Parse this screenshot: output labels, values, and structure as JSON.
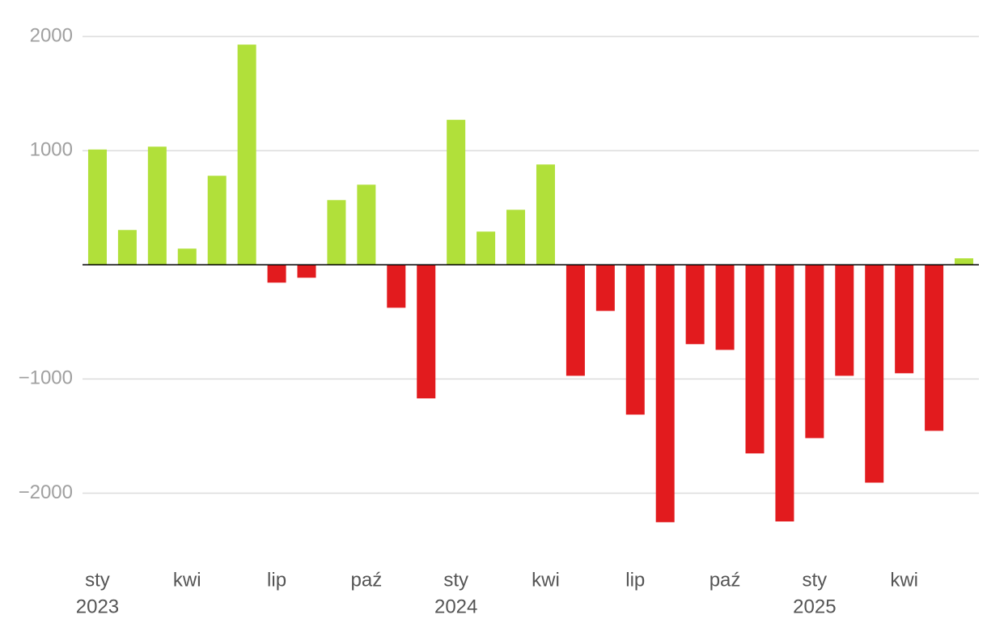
{
  "chart_data": {
    "type": "bar",
    "categories": [
      "sty",
      null,
      null,
      "kwi",
      null,
      null,
      "lip",
      null,
      null,
      "paź",
      null,
      null,
      "sty",
      null,
      null,
      "kwi",
      null,
      null,
      "lip",
      null,
      null,
      "paź",
      null,
      null,
      "sty",
      null,
      null,
      "kwi",
      null,
      null
    ],
    "years": [
      "2023",
      null,
      null,
      null,
      null,
      null,
      null,
      null,
      null,
      null,
      null,
      null,
      "2024",
      null,
      null,
      null,
      null,
      null,
      null,
      null,
      null,
      null,
      null,
      null,
      "2025",
      null,
      null,
      null,
      null,
      null
    ],
    "values": [
      1010,
      305,
      1035,
      142,
      780,
      1929,
      -156,
      -113,
      567,
      702,
      -376,
      -1170,
      1270,
      291,
      482,
      879,
      -972,
      -404,
      -1312,
      -2255,
      -695,
      -745,
      -1652,
      -2248,
      -1518,
      -972,
      -1908,
      -950,
      -1454,
      57
    ],
    "colors": {
      "positive": "#b1e03a",
      "negative": "#e21b1e"
    },
    "ylim": [
      -2500,
      2100
    ],
    "yticks": [
      {
        "value": -2000,
        "label": "−2000"
      },
      {
        "value": -1000,
        "label": "−1000"
      },
      1000,
      2000
    ],
    "grid": true
  }
}
